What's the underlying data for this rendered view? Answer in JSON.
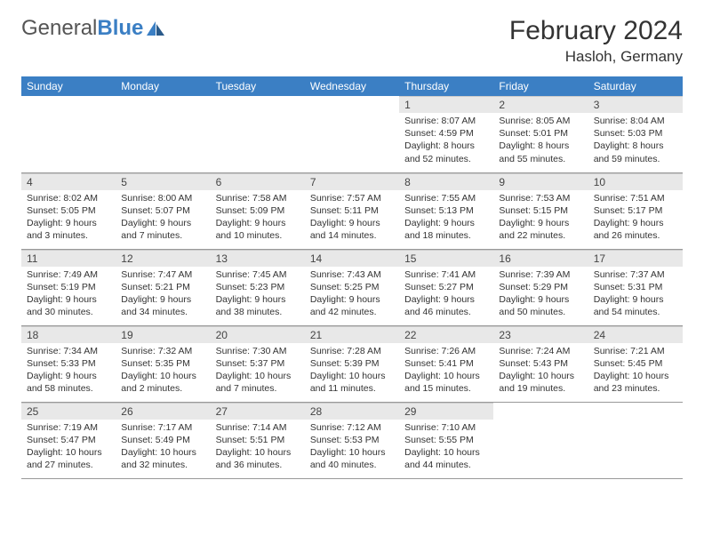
{
  "logo": {
    "text1": "General",
    "text2": "Blue"
  },
  "title": "February 2024",
  "location": "Hasloh, Germany",
  "colors": {
    "header_bg": "#3b7fc4",
    "date_bar_bg": "#e8e8e8",
    "border": "#999"
  },
  "days": [
    "Sunday",
    "Monday",
    "Tuesday",
    "Wednesday",
    "Thursday",
    "Friday",
    "Saturday"
  ],
  "weeks": [
    [
      null,
      null,
      null,
      null,
      {
        "n": "1",
        "sr": "8:07 AM",
        "ss": "4:59 PM",
        "dl": "8 hours and 52 minutes."
      },
      {
        "n": "2",
        "sr": "8:05 AM",
        "ss": "5:01 PM",
        "dl": "8 hours and 55 minutes."
      },
      {
        "n": "3",
        "sr": "8:04 AM",
        "ss": "5:03 PM",
        "dl": "8 hours and 59 minutes."
      }
    ],
    [
      {
        "n": "4",
        "sr": "8:02 AM",
        "ss": "5:05 PM",
        "dl": "9 hours and 3 minutes."
      },
      {
        "n": "5",
        "sr": "8:00 AM",
        "ss": "5:07 PM",
        "dl": "9 hours and 7 minutes."
      },
      {
        "n": "6",
        "sr": "7:58 AM",
        "ss": "5:09 PM",
        "dl": "9 hours and 10 minutes."
      },
      {
        "n": "7",
        "sr": "7:57 AM",
        "ss": "5:11 PM",
        "dl": "9 hours and 14 minutes."
      },
      {
        "n": "8",
        "sr": "7:55 AM",
        "ss": "5:13 PM",
        "dl": "9 hours and 18 minutes."
      },
      {
        "n": "9",
        "sr": "7:53 AM",
        "ss": "5:15 PM",
        "dl": "9 hours and 22 minutes."
      },
      {
        "n": "10",
        "sr": "7:51 AM",
        "ss": "5:17 PM",
        "dl": "9 hours and 26 minutes."
      }
    ],
    [
      {
        "n": "11",
        "sr": "7:49 AM",
        "ss": "5:19 PM",
        "dl": "9 hours and 30 minutes."
      },
      {
        "n": "12",
        "sr": "7:47 AM",
        "ss": "5:21 PM",
        "dl": "9 hours and 34 minutes."
      },
      {
        "n": "13",
        "sr": "7:45 AM",
        "ss": "5:23 PM",
        "dl": "9 hours and 38 minutes."
      },
      {
        "n": "14",
        "sr": "7:43 AM",
        "ss": "5:25 PM",
        "dl": "9 hours and 42 minutes."
      },
      {
        "n": "15",
        "sr": "7:41 AM",
        "ss": "5:27 PM",
        "dl": "9 hours and 46 minutes."
      },
      {
        "n": "16",
        "sr": "7:39 AM",
        "ss": "5:29 PM",
        "dl": "9 hours and 50 minutes."
      },
      {
        "n": "17",
        "sr": "7:37 AM",
        "ss": "5:31 PM",
        "dl": "9 hours and 54 minutes."
      }
    ],
    [
      {
        "n": "18",
        "sr": "7:34 AM",
        "ss": "5:33 PM",
        "dl": "9 hours and 58 minutes."
      },
      {
        "n": "19",
        "sr": "7:32 AM",
        "ss": "5:35 PM",
        "dl": "10 hours and 2 minutes."
      },
      {
        "n": "20",
        "sr": "7:30 AM",
        "ss": "5:37 PM",
        "dl": "10 hours and 7 minutes."
      },
      {
        "n": "21",
        "sr": "7:28 AM",
        "ss": "5:39 PM",
        "dl": "10 hours and 11 minutes."
      },
      {
        "n": "22",
        "sr": "7:26 AM",
        "ss": "5:41 PM",
        "dl": "10 hours and 15 minutes."
      },
      {
        "n": "23",
        "sr": "7:24 AM",
        "ss": "5:43 PM",
        "dl": "10 hours and 19 minutes."
      },
      {
        "n": "24",
        "sr": "7:21 AM",
        "ss": "5:45 PM",
        "dl": "10 hours and 23 minutes."
      }
    ],
    [
      {
        "n": "25",
        "sr": "7:19 AM",
        "ss": "5:47 PM",
        "dl": "10 hours and 27 minutes."
      },
      {
        "n": "26",
        "sr": "7:17 AM",
        "ss": "5:49 PM",
        "dl": "10 hours and 32 minutes."
      },
      {
        "n": "27",
        "sr": "7:14 AM",
        "ss": "5:51 PM",
        "dl": "10 hours and 36 minutes."
      },
      {
        "n": "28",
        "sr": "7:12 AM",
        "ss": "5:53 PM",
        "dl": "10 hours and 40 minutes."
      },
      {
        "n": "29",
        "sr": "7:10 AM",
        "ss": "5:55 PM",
        "dl": "10 hours and 44 minutes."
      },
      null,
      null
    ]
  ],
  "labels": {
    "sunrise": "Sunrise: ",
    "sunset": "Sunset: ",
    "daylight": "Daylight: "
  }
}
